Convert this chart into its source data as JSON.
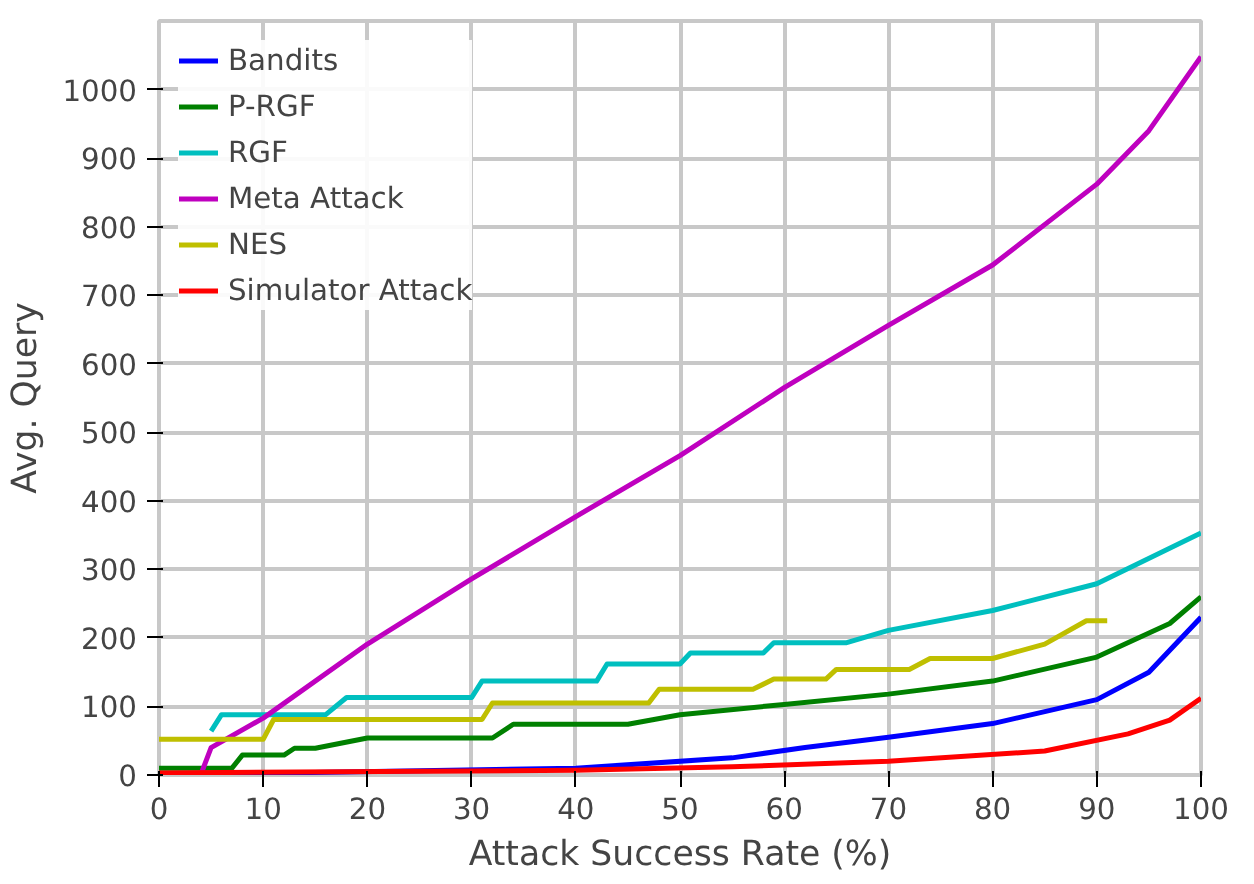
{
  "chart_data": {
    "type": "line",
    "xlabel": "Attack Success Rate (%)",
    "ylabel": "Avg. Query",
    "xlim": [
      0,
      100
    ],
    "ylim": [
      0,
      1100
    ],
    "xticks": [
      0,
      10,
      20,
      30,
      40,
      50,
      60,
      70,
      80,
      90,
      100
    ],
    "yticks": [
      0,
      100,
      200,
      300,
      400,
      500,
      600,
      700,
      800,
      900,
      1000
    ],
    "grid": true,
    "legend": "top left",
    "line_style": "solid",
    "series": [
      {
        "name": "Bandits",
        "color": "#0000ff",
        "x": [
          0,
          40,
          55,
          62,
          70,
          80,
          90,
          95,
          100
        ],
        "values": [
          0,
          10,
          25,
          40,
          55,
          75,
          110,
          150,
          230
        ]
      },
      {
        "name": "P-RGF",
        "color": "#008000",
        "x": [
          0,
          7,
          8,
          12,
          13,
          15,
          20,
          32,
          34,
          45,
          50,
          60,
          70,
          80,
          90,
          97,
          100
        ],
        "values": [
          10,
          10,
          29,
          29,
          39,
          39,
          54,
          54,
          74,
          74,
          88,
          103,
          118,
          137,
          172,
          221,
          260
        ]
      },
      {
        "name": "RGF",
        "color": "#00bfbf",
        "x": [
          5,
          6,
          16,
          18,
          30,
          31,
          42,
          43,
          50,
          51,
          58,
          59,
          66,
          70,
          80,
          90,
          100
        ],
        "values": [
          64,
          88,
          88,
          113,
          113,
          137,
          137,
          162,
          162,
          178,
          178,
          193,
          193,
          211,
          240,
          279,
          353
        ]
      },
      {
        "name": "Meta Attack",
        "color": "#bf00bf",
        "x": [
          4,
          5,
          10,
          20,
          30,
          40,
          50,
          60,
          70,
          80,
          90,
          95,
          100
        ],
        "values": [
          0,
          40,
          83,
          191,
          286,
          377,
          466,
          565,
          656,
          744,
          862,
          940,
          1048
        ]
      },
      {
        "name": "NES",
        "color": "#bfbf00",
        "x": [
          0,
          10,
          11,
          31,
          32,
          47,
          48,
          57,
          59,
          64,
          65,
          72,
          74,
          80,
          85,
          89,
          91
        ],
        "values": [
          52,
          52,
          81,
          81,
          105,
          105,
          125,
          125,
          140,
          140,
          154,
          154,
          170,
          170,
          191,
          225,
          225
        ]
      },
      {
        "name": "Simulator Attack",
        "color": "#ff0000",
        "x": [
          0,
          40,
          55,
          70,
          85,
          93,
          97,
          100
        ],
        "values": [
          3,
          7,
          12,
          20,
          35,
          60,
          80,
          112
        ]
      }
    ]
  }
}
